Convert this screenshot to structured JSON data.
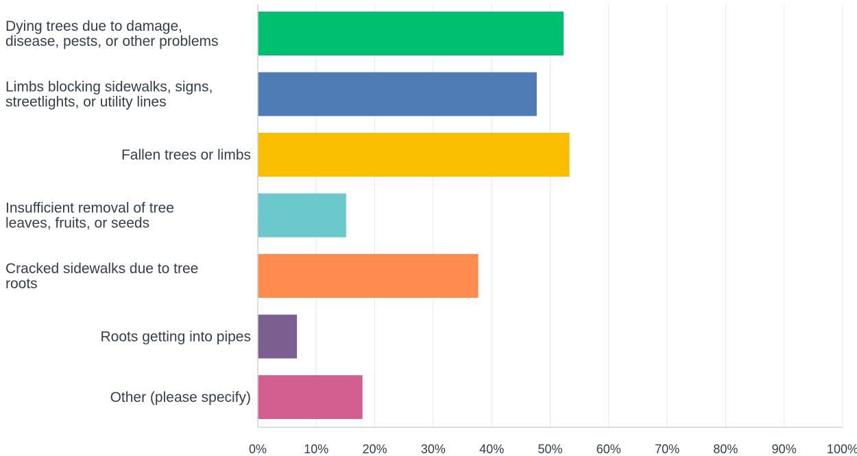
{
  "chart_data": {
    "type": "bar",
    "orientation": "horizontal",
    "title": "",
    "xlabel": "",
    "ylabel": "",
    "xlim": [
      0,
      100
    ],
    "grid": true,
    "legend": "none",
    "categories": [
      "Dying trees due to damage,\ndisease, pests, or other problems",
      "Limbs blocking sidewalks, signs,\nstreetlights, or utility lines",
      "Fallen trees or limbs",
      "Insufficient removal of tree\nleaves, fruits, or seeds",
      "Cracked sidewalks due to tree\nroots",
      "Roots getting into pipes",
      "Other (please specify)"
    ],
    "values": [
      52.3,
      47.7,
      53.3,
      15.1,
      37.7,
      6.7,
      17.9
    ],
    "colors": [
      "#00bf6f",
      "#507cb6",
      "#f9be00",
      "#6bc8cd",
      "#ff8b4f",
      "#7d5e90",
      "#d25f90"
    ],
    "x_ticks": [
      "0%",
      "10%",
      "20%",
      "30%",
      "40%",
      "50%",
      "60%",
      "70%",
      "80%",
      "90%",
      "100%"
    ]
  }
}
